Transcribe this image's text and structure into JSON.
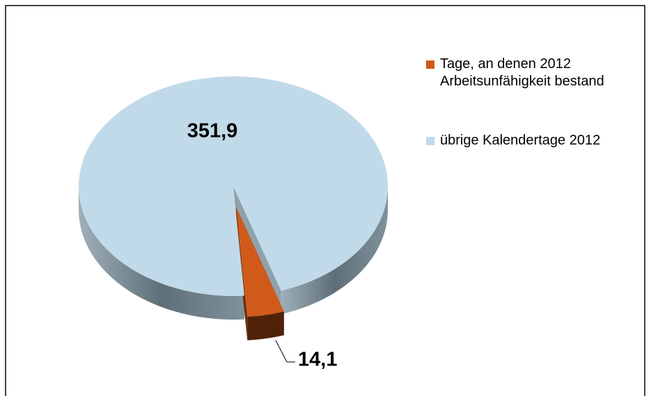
{
  "chart_data": {
    "type": "pie3d",
    "categories": [
      "Tage, an denen 2012 Arbeitsunfähigkeit bestand",
      "übrige Kalendertage 2012"
    ],
    "values": [
      14.1,
      351.9
    ],
    "value_labels": [
      "14,1",
      "351,9"
    ],
    "colors": [
      "#d05a1a",
      "#c1dae9"
    ],
    "legend": "right"
  }
}
